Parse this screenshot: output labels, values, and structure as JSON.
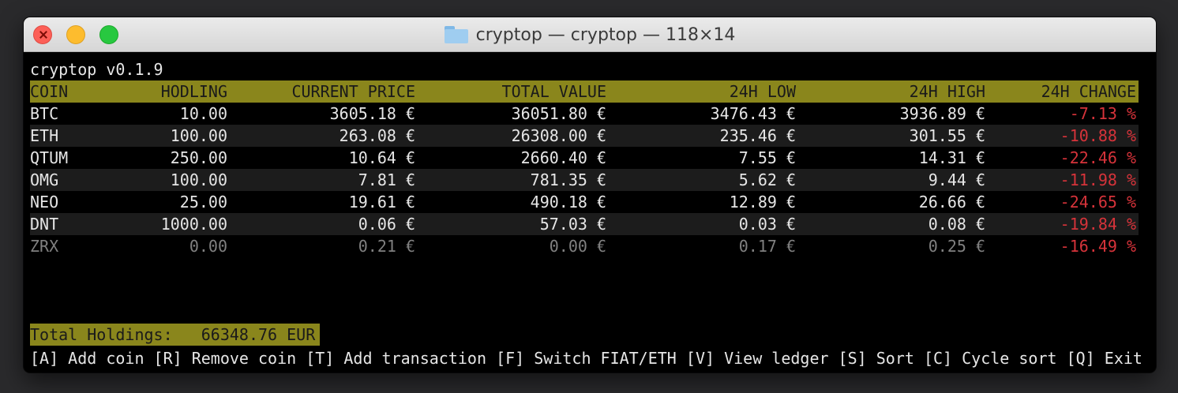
{
  "window": {
    "title": "cryptop — cryptop — 118×14",
    "icon": "folder-icon"
  },
  "app": {
    "version_title": "cryptop v0.1.9"
  },
  "table": {
    "columns": [
      "COIN",
      "HODLING",
      "CURRENT PRICE",
      "TOTAL VALUE",
      "24H LOW",
      "24H HIGH",
      "24H CHANGE"
    ],
    "rows": [
      {
        "coin": "BTC",
        "hodling": "10.00",
        "price": "3605.18 €",
        "total": "36051.80 €",
        "low": "3476.43 €",
        "high": "3936.89 €",
        "change": "-7.13 %"
      },
      {
        "coin": "ETH",
        "hodling": "100.00",
        "price": "263.08 €",
        "total": "26308.00 €",
        "low": "235.46 €",
        "high": "301.55 €",
        "change": "-10.88 %"
      },
      {
        "coin": "QTUM",
        "hodling": "250.00",
        "price": "10.64 €",
        "total": "2660.40 €",
        "low": "7.55 €",
        "high": "14.31 €",
        "change": "-22.46 %"
      },
      {
        "coin": "OMG",
        "hodling": "100.00",
        "price": "7.81 €",
        "total": "781.35 €",
        "low": "5.62 €",
        "high": "9.44 €",
        "change": "-11.98 %"
      },
      {
        "coin": "NEO",
        "hodling": "25.00",
        "price": "19.61 €",
        "total": "490.18 €",
        "low": "12.89 €",
        "high": "26.66 €",
        "change": "-24.65 %"
      },
      {
        "coin": "DNT",
        "hodling": "1000.00",
        "price": "0.06 €",
        "total": "57.03 €",
        "low": "0.03 €",
        "high": "0.08 €",
        "change": "-19.84 %"
      },
      {
        "coin": "ZRX",
        "hodling": "0.00",
        "price": "0.21 €",
        "total": "0.00 €",
        "low": "0.17 €",
        "high": "0.25 €",
        "change": "-16.49 %"
      }
    ]
  },
  "totals": {
    "label": "Total Holdings:",
    "value": "66348.76 EUR"
  },
  "help": [
    {
      "key": "[A]",
      "label": "Add coin"
    },
    {
      "key": "[R]",
      "label": "Remove coin"
    },
    {
      "key": "[T]",
      "label": "Add transaction"
    },
    {
      "key": "[F]",
      "label": "Switch FIAT/ETH"
    },
    {
      "key": "[V]",
      "label": "View ledger"
    },
    {
      "key": "[S]",
      "label": "Sort"
    },
    {
      "key": "[C]",
      "label": "Cycle sort"
    },
    {
      "key": "[Q]",
      "label": "Exit"
    }
  ],
  "colors": {
    "header_bg": "#8a861c",
    "negative": "#d6333a",
    "dim_text": "#808080"
  }
}
